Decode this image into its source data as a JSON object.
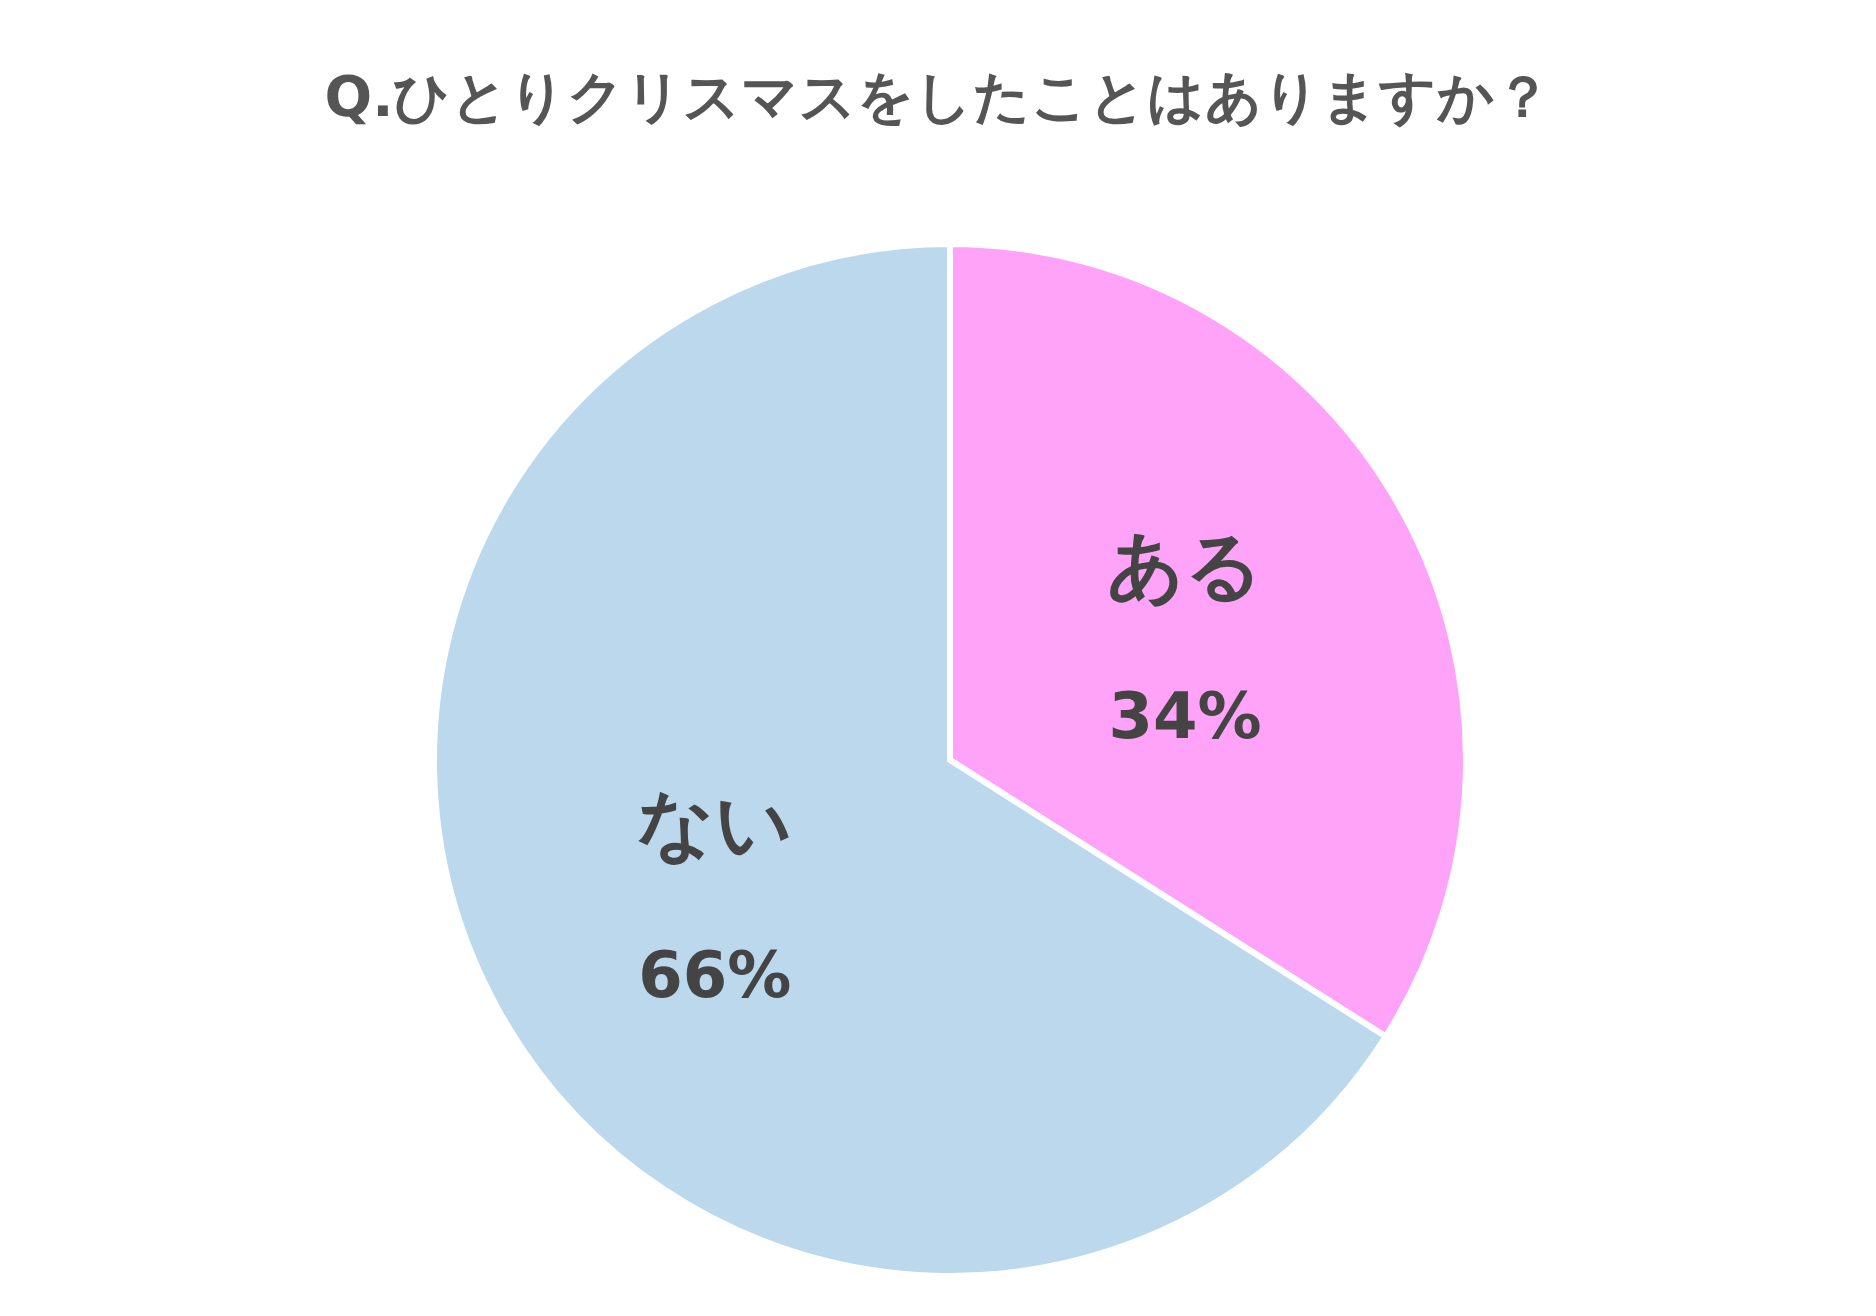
{
  "chart_data": {
    "type": "pie",
    "title": "Q.ひとりクリスマスをしたことはありますか？",
    "categories": [
      "ある",
      "ない"
    ],
    "values": [
      34,
      66
    ],
    "value_labels": [
      "34%",
      "66%"
    ],
    "colors": [
      "#ffa3f8",
      "#bcd8ed"
    ],
    "legend": false
  }
}
